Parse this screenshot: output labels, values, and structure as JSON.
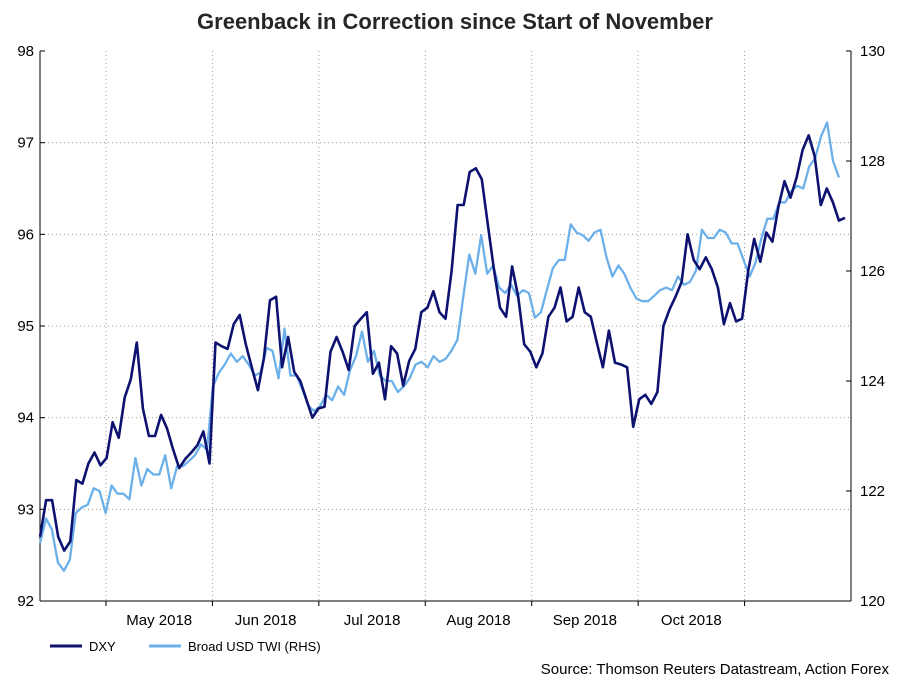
{
  "chart_data": {
    "type": "line",
    "title": "Greenback in Correction since Start of November",
    "source": "Source: Thomson Reuters Datastream, Action Forex",
    "x_labels": [
      "May 2018",
      "Jun 2018",
      "Jul 2018",
      "Aug 2018",
      "Sep 2018",
      "Oct 2018"
    ],
    "y_left": {
      "min": 92,
      "max": 98,
      "ticks": [
        "92",
        "93",
        "94",
        "95",
        "96",
        "97",
        "98"
      ]
    },
    "y_right": {
      "min": 120,
      "max": 130,
      "ticks": [
        "120",
        "122",
        "124",
        "126",
        "128",
        "130"
      ]
    },
    "series": [
      {
        "name": "DXY",
        "axis": "left",
        "color": "#0d1270",
        "values": [
          92.7,
          93.1,
          93.1,
          92.7,
          92.55,
          92.65,
          93.32,
          93.28,
          93.5,
          93.62,
          93.48,
          93.56,
          93.95,
          93.78,
          94.22,
          94.42,
          94.82,
          94.1,
          93.8,
          93.8,
          94.03,
          93.88,
          93.65,
          93.45,
          93.55,
          93.62,
          93.7,
          93.85,
          93.5,
          94.82,
          94.78,
          94.75,
          95.02,
          95.12,
          94.8,
          94.55,
          94.3,
          94.65,
          95.28,
          95.32,
          94.55,
          94.88,
          94.5,
          94.4,
          94.2,
          94.0,
          94.1,
          94.12,
          94.72,
          94.88,
          94.72,
          94.52,
          95.0,
          95.08,
          95.15,
          94.48,
          94.6,
          94.2,
          94.78,
          94.7,
          94.35,
          94.62,
          94.75,
          95.15,
          95.2,
          95.38,
          95.15,
          95.08,
          95.6,
          96.32,
          96.32,
          96.68,
          96.72,
          96.6,
          96.1,
          95.62,
          95.2,
          95.1,
          95.65,
          95.32,
          94.8,
          94.72,
          94.55,
          94.7,
          95.1,
          95.2,
          95.42,
          95.05,
          95.1,
          95.42,
          95.15,
          95.1,
          94.82,
          94.55,
          94.95,
          94.6,
          94.58,
          94.55,
          93.9,
          94.2,
          94.25,
          94.15,
          94.28,
          95.0,
          95.18,
          95.32,
          95.48,
          96.0,
          95.72,
          95.62,
          95.75,
          95.62,
          95.42,
          95.02,
          95.25,
          95.05,
          95.08,
          95.6,
          95.95,
          95.7,
          96.02,
          95.92,
          96.3,
          96.58,
          96.4,
          96.62,
          96.92,
          97.08,
          96.85,
          96.32,
          96.5,
          96.35,
          96.15,
          96.18
        ]
      },
      {
        "name": "Broad USD TWI (RHS)",
        "axis": "right",
        "color": "#6cb0ea",
        "values": [
          121.05,
          121.5,
          121.3,
          120.7,
          120.55,
          120.75,
          121.6,
          121.7,
          121.75,
          122.05,
          122.0,
          121.6,
          122.1,
          121.95,
          121.95,
          121.85,
          122.6,
          122.1,
          122.4,
          122.3,
          122.3,
          122.65,
          122.05,
          122.45,
          122.45,
          122.55,
          122.65,
          122.85,
          122.75,
          123.9,
          124.15,
          124.3,
          124.5,
          124.35,
          124.45,
          124.3,
          124.1,
          124.15,
          124.6,
          124.55,
          124.05,
          124.95,
          124.1,
          124.1,
          123.85,
          123.55,
          123.45,
          123.55,
          123.75,
          123.65,
          123.9,
          123.75,
          124.2,
          124.45,
          124.9,
          124.35,
          124.55,
          124.1,
          124.0,
          124.0,
          123.8,
          123.9,
          124.05,
          124.3,
          124.35,
          124.25,
          124.45,
          124.35,
          124.4,
          124.55,
          124.75,
          125.55,
          126.3,
          125.95,
          126.65,
          125.95,
          126.1,
          125.7,
          125.6,
          125.75,
          125.55,
          125.65,
          125.6,
          125.15,
          125.25,
          125.65,
          126.05,
          126.2,
          126.2,
          126.85,
          126.7,
          126.65,
          126.55,
          126.7,
          126.75,
          126.25,
          125.9,
          126.1,
          125.95,
          125.7,
          125.5,
          125.45,
          125.45,
          125.55,
          125.65,
          125.7,
          125.65,
          125.9,
          125.75,
          125.8,
          126.0,
          126.75,
          126.6,
          126.6,
          126.75,
          126.7,
          126.5,
          126.5,
          126.2,
          125.9,
          126.15,
          126.6,
          126.95,
          126.95,
          127.25,
          127.25,
          127.45,
          127.55,
          127.5,
          127.9,
          128.05,
          128.45,
          128.7,
          128.0,
          127.7
        ]
      }
    ]
  }
}
